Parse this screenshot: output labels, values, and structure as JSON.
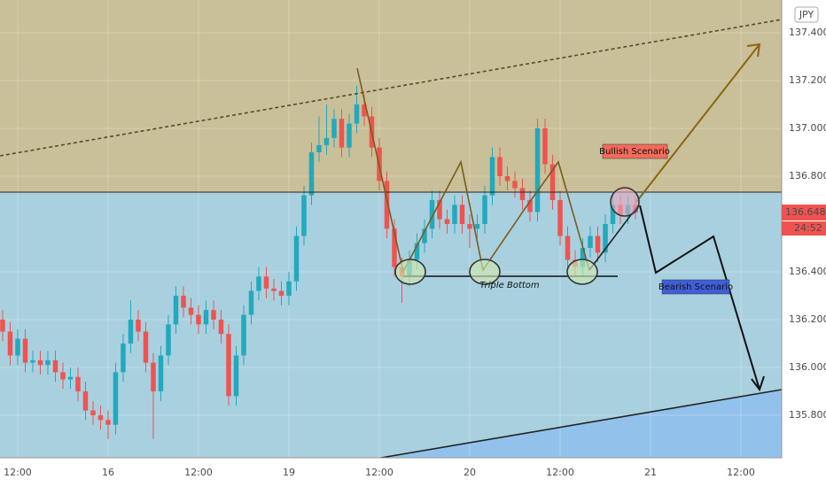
{
  "chart_data": {
    "type": "candlestick",
    "currency": "JPY",
    "countdown": "24:52",
    "annotations": {
      "bullish": "Bullish Scenario",
      "bearish": "Bearish Scenario",
      "pattern": "Triple Bottom"
    },
    "up_color": "#22a9bd",
    "down_color": "#ef5350",
    "x": [
      -2,
      -1,
      0,
      1,
      2,
      3,
      4,
      5,
      6,
      7,
      8,
      9,
      10,
      11,
      12,
      13,
      14,
      15,
      16,
      17,
      18,
      19,
      20,
      21,
      22,
      23,
      24,
      25,
      26,
      27,
      28,
      29,
      30,
      31,
      32,
      33,
      34,
      35,
      36,
      37,
      38,
      39,
      40,
      41,
      42,
      43,
      44,
      45,
      46,
      47,
      48,
      49,
      50,
      51,
      52,
      53,
      54,
      55,
      56,
      57,
      58,
      59,
      60,
      61,
      62,
      63,
      64,
      65,
      66,
      67,
      68,
      69,
      70,
      71,
      72,
      73,
      74,
      75,
      76,
      77,
      78,
      79,
      80,
      81,
      82
    ],
    "open": [
      136.2,
      136.15,
      136.05,
      136.12,
      136.02,
      136.03,
      136.01,
      136.03,
      135.98,
      135.95,
      135.96,
      135.9,
      135.82,
      135.8,
      135.78,
      135.76,
      135.98,
      136.1,
      136.2,
      136.15,
      136.02,
      135.9,
      136.05,
      136.18,
      136.3,
      136.25,
      136.22,
      136.18,
      136.24,
      136.2,
      136.14,
      135.88,
      136.05,
      136.22,
      136.32,
      136.38,
      136.33,
      136.32,
      136.3,
      136.36,
      136.55,
      136.72,
      136.9,
      136.93,
      136.96,
      137.04,
      136.92,
      137.02,
      137.1,
      137.05,
      136.92,
      136.78,
      136.58,
      136.42,
      136.38,
      136.45,
      136.52,
      136.58,
      136.7,
      136.62,
      136.6,
      136.68,
      136.6,
      136.58,
      136.6,
      136.72,
      136.88,
      136.8,
      136.78,
      136.75,
      136.7,
      136.65,
      137.0,
      136.85,
      136.7,
      136.55,
      136.45,
      136.42,
      136.5,
      136.55,
      136.48,
      136.6,
      136.68,
      136.64,
      136.68
    ],
    "high": [
      136.24,
      136.19,
      136.16,
      136.16,
      136.07,
      136.07,
      136.07,
      136.07,
      136.02,
      136.0,
      136.0,
      135.94,
      135.86,
      135.84,
      135.82,
      136.02,
      136.14,
      136.28,
      136.24,
      136.19,
      136.06,
      136.09,
      136.22,
      136.34,
      136.34,
      136.29,
      136.26,
      136.28,
      136.28,
      136.24,
      136.18,
      136.09,
      136.26,
      136.36,
      136.42,
      136.42,
      136.37,
      136.36,
      136.4,
      136.59,
      136.76,
      136.94,
      137.05,
      137.1,
      137.08,
      137.08,
      137.06,
      137.18,
      137.14,
      137.09,
      136.96,
      136.82,
      136.62,
      136.46,
      136.49,
      136.56,
      136.62,
      136.74,
      136.74,
      136.66,
      136.72,
      136.72,
      136.64,
      136.64,
      136.76,
      136.92,
      136.92,
      136.84,
      136.82,
      136.79,
      136.74,
      137.04,
      137.04,
      136.89,
      136.74,
      136.59,
      136.49,
      136.54,
      136.59,
      136.59,
      136.64,
      136.72,
      136.72,
      136.72,
      136.72
    ],
    "low": [
      136.11,
      136.01,
      136.01,
      135.98,
      135.98,
      135.97,
      135.97,
      135.94,
      135.91,
      135.91,
      135.86,
      135.78,
      135.76,
      135.74,
      135.7,
      135.72,
      135.94,
      136.06,
      136.11,
      135.98,
      135.7,
      135.86,
      136.01,
      136.14,
      136.21,
      136.18,
      136.14,
      136.14,
      136.16,
      136.1,
      135.84,
      135.84,
      136.01,
      136.18,
      136.28,
      136.29,
      136.28,
      136.26,
      136.26,
      136.32,
      136.51,
      136.68,
      136.86,
      136.89,
      136.92,
      136.88,
      136.88,
      136.98,
      137.01,
      136.88,
      136.74,
      136.54,
      136.38,
      136.27,
      136.34,
      136.41,
      136.48,
      136.54,
      136.58,
      136.56,
      136.56,
      136.56,
      136.5,
      136.54,
      136.56,
      136.68,
      136.76,
      136.74,
      136.71,
      136.66,
      136.61,
      136.61,
      136.81,
      136.66,
      136.51,
      136.41,
      136.38,
      136.38,
      136.46,
      136.44,
      136.44,
      136.56,
      136.6,
      136.6,
      136.62
    ],
    "close": [
      136.15,
      136.05,
      136.12,
      136.02,
      136.03,
      136.01,
      136.03,
      135.98,
      135.95,
      135.96,
      135.9,
      135.82,
      135.8,
      135.78,
      135.76,
      135.98,
      136.1,
      136.2,
      136.15,
      136.02,
      135.9,
      136.05,
      136.18,
      136.3,
      136.25,
      136.22,
      136.18,
      136.24,
      136.2,
      136.14,
      135.88,
      136.05,
      136.22,
      136.32,
      136.38,
      136.33,
      136.32,
      136.3,
      136.36,
      136.55,
      136.72,
      136.9,
      136.93,
      136.96,
      137.04,
      136.92,
      137.02,
      137.1,
      137.05,
      136.92,
      136.78,
      136.58,
      136.42,
      136.38,
      136.45,
      136.52,
      136.58,
      136.7,
      136.62,
      136.6,
      136.68,
      136.6,
      136.58,
      136.6,
      136.72,
      136.88,
      136.8,
      136.78,
      136.75,
      136.7,
      136.65,
      137.0,
      136.85,
      136.7,
      136.55,
      136.45,
      136.42,
      136.5,
      136.55,
      136.48,
      136.6,
      136.68,
      136.64,
      136.68,
      136.648
    ],
    "xlim": [
      -2.35,
      101.41
    ],
    "xticks": [
      {
        "value": 0,
        "label": "12:00"
      },
      {
        "value": 12,
        "label": "16"
      },
      {
        "value": 24,
        "label": "12:00"
      },
      {
        "value": 36,
        "label": "19"
      },
      {
        "value": 48,
        "label": "12:00"
      },
      {
        "value": 60,
        "label": "20"
      },
      {
        "value": 72,
        "label": "12:00"
      },
      {
        "value": 84,
        "label": "21"
      },
      {
        "value": 96,
        "label": "12:00"
      }
    ],
    "ylim": [
      135.622,
      137.537
    ],
    "yticks": [
      {
        "value": 135.8,
        "label": "135.800"
      },
      {
        "value": 136,
        "label": "136.000"
      },
      {
        "value": 136.2,
        "label": "136.200"
      },
      {
        "value": 136.4,
        "label": "136.400"
      },
      {
        "value": 136.8,
        "label": "136.800"
      },
      {
        "value": 137,
        "label": "137.000"
      },
      {
        "value": 137.2,
        "label": "137.200"
      },
      {
        "value": 137.4,
        "label": "137.400"
      }
    ]
  }
}
